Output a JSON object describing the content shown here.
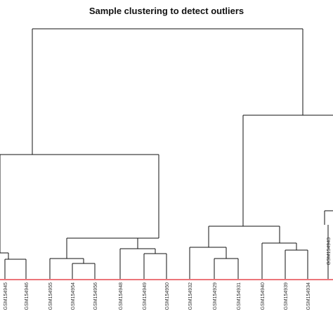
{
  "title": "Sample clustering to detect outliers",
  "cutoff_color": "#e0232a",
  "line_color": "#111111",
  "chart_data": {
    "type": "dendrogram",
    "cutoff_height": 0,
    "leaves": [
      "GSM154945",
      "GSM154946",
      "GSM154955",
      "GSM154954",
      "GSM154956",
      "GSM154948",
      "GSM154949",
      "GSM154950",
      "GSM154932",
      "GSM154929",
      "GSM154931",
      "GSM154940",
      "GSM154939",
      "GSM154934",
      "GSM154943"
    ]
  }
}
